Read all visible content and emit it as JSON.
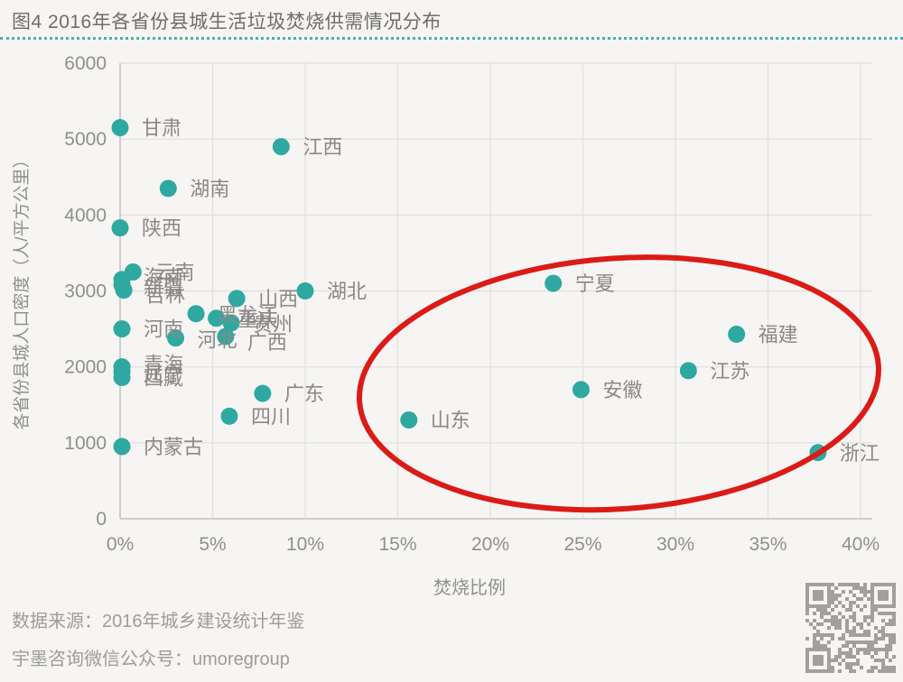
{
  "header": {
    "title": "图4 2016年各省份县城生活垃圾焚烧供需情况分布"
  },
  "chart_data": {
    "type": "scatter",
    "title": "图4 2016年各省份县城生活垃圾焚烧供需情况分布",
    "xlabel": "焚烧比例",
    "ylabel": "各省份县城人口密度（人/平方公里）",
    "xlim_pct": [
      0,
      40
    ],
    "ylim": [
      0,
      6000
    ],
    "grid": true,
    "xticks": [
      {
        "value": 0,
        "label": "0%"
      },
      {
        "value": 5,
        "label": "5%"
      },
      {
        "value": 10,
        "label": "10%"
      },
      {
        "value": 15,
        "label": "15%"
      },
      {
        "value": 20,
        "label": "20%"
      },
      {
        "value": 25,
        "label": "25%"
      },
      {
        "value": 30,
        "label": "30%"
      },
      {
        "value": 35,
        "label": "35%"
      },
      {
        "value": 40,
        "label": "40%"
      }
    ],
    "yticks": [
      {
        "value": 0,
        "label": "0"
      },
      {
        "value": 1000,
        "label": "1000"
      },
      {
        "value": 2000,
        "label": "2000"
      },
      {
        "value": 3000,
        "label": "3000"
      },
      {
        "value": 4000,
        "label": "4000"
      },
      {
        "value": 5000,
        "label": "5000"
      },
      {
        "value": 6000,
        "label": "6000"
      }
    ],
    "points": [
      {
        "name": "甘肃",
        "x": 0.0,
        "y": 5150
      },
      {
        "name": "江西",
        "x": 8.7,
        "y": 4900
      },
      {
        "name": "湖南",
        "x": 2.6,
        "y": 4350
      },
      {
        "name": "陕西",
        "x": 0.0,
        "y": 3830
      },
      {
        "name": "云南",
        "x": 0.7,
        "y": 3250
      },
      {
        "name": "海南",
        "x": 0.1,
        "y": 3150,
        "ldy": 5
      },
      {
        "name": "新疆",
        "x": 0.1,
        "y": 3080,
        "ldy": 11
      },
      {
        "name": "吉林",
        "x": 0.2,
        "y": 3010,
        "ldy": 13
      },
      {
        "name": "湖北",
        "x": 10.0,
        "y": 3000
      },
      {
        "name": "山西",
        "x": 6.3,
        "y": 2900
      },
      {
        "name": "黑龙江",
        "x": 4.1,
        "y": 2700,
        "ldy": 9
      },
      {
        "name": "重庆",
        "x": 5.2,
        "y": 2640,
        "ldy": 9
      },
      {
        "name": "贵州",
        "x": 6.0,
        "y": 2580,
        "ldy": 9
      },
      {
        "name": "河南",
        "x": 0.1,
        "y": 2500
      },
      {
        "name": "河北",
        "x": 3.0,
        "y": 2380,
        "ldy": 10
      },
      {
        "name": "广西",
        "x": 5.7,
        "y": 2400,
        "ldy": 14
      },
      {
        "name": "青海",
        "x": 0.1,
        "y": 2000,
        "ldy": 5
      },
      {
        "name": "辽宁",
        "x": 0.1,
        "y": 1940,
        "ldy": 11
      },
      {
        "name": "西藏",
        "x": 0.1,
        "y": 1860,
        "ldy": 8
      },
      {
        "name": "广东",
        "x": 7.7,
        "y": 1650
      },
      {
        "name": "四川",
        "x": 5.9,
        "y": 1350
      },
      {
        "name": "内蒙古",
        "x": 0.1,
        "y": 950
      },
      {
        "name": "宁夏",
        "x": 23.4,
        "y": 3100
      },
      {
        "name": "山东",
        "x": 15.6,
        "y": 1300
      },
      {
        "name": "安徽",
        "x": 24.9,
        "y": 1700
      },
      {
        "name": "江苏",
        "x": 30.7,
        "y": 1950
      },
      {
        "name": "福建",
        "x": 33.3,
        "y": 2430
      },
      {
        "name": "浙江",
        "x": 37.7,
        "y": 870
      }
    ],
    "annotation": {
      "shape": "ellipse",
      "x_range_pct": [
        12.9,
        41.0
      ],
      "y_range": [
        130,
        3430
      ],
      "rotation_deg": -4,
      "color": "#dc1b17"
    },
    "legend": null
  },
  "footer": {
    "source": "数据来源：2016年城乡建设统计年鉴",
    "wechat": "宇墨咨询微信公众号：umoregroup",
    "qr_icon": "wechat-qr-code"
  },
  "colors": {
    "background": "#f6f5f3",
    "dot": "#2fa8a1",
    "grid": "#e3e2e0",
    "axis": "#c6c5c3",
    "tick_text": "#8f8f8e",
    "point_label": "#8a8988",
    "title_text": "#6e6d6b",
    "separator": "#43b5ab",
    "annotation_red": "#dc1b17",
    "footer_text": "#9d9c9a",
    "qr_gray": "#a2a09d"
  }
}
